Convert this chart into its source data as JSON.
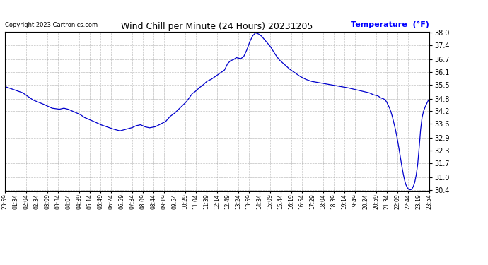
{
  "title": "Wind Chill per Minute (24 Hours) 20231205",
  "ylabel": "Temperature  (°F)",
  "copyright": "Copyright 2023 Cartronics.com",
  "line_color": "#0000cc",
  "background_color": "#ffffff",
  "grid_color": "#b0b0b0",
  "yticks": [
    30.4,
    31.0,
    31.7,
    32.3,
    32.9,
    33.6,
    34.2,
    34.8,
    35.5,
    36.1,
    36.7,
    37.4,
    38.0
  ],
  "xtick_labels": [
    "23:59",
    "01:34",
    "02:04",
    "02:34",
    "03:09",
    "03:34",
    "04:04",
    "04:39",
    "05:14",
    "05:49",
    "06:24",
    "06:59",
    "07:34",
    "08:09",
    "08:44",
    "09:19",
    "09:54",
    "10:29",
    "11:04",
    "11:39",
    "12:14",
    "12:49",
    "13:24",
    "13:59",
    "14:34",
    "15:09",
    "15:44",
    "16:19",
    "16:54",
    "17:29",
    "18:04",
    "18:39",
    "19:14",
    "19:49",
    "20:24",
    "20:59",
    "21:34",
    "22:09",
    "22:44",
    "23:19",
    "23:54"
  ],
  "keypoints": [
    [
      0,
      35.4
    ],
    [
      60,
      35.1
    ],
    [
      95,
      34.75
    ],
    [
      130,
      34.55
    ],
    [
      160,
      34.35
    ],
    [
      185,
      34.3
    ],
    [
      200,
      34.35
    ],
    [
      215,
      34.3
    ],
    [
      230,
      34.2
    ],
    [
      255,
      34.05
    ],
    [
      270,
      33.9
    ],
    [
      295,
      33.75
    ],
    [
      310,
      33.65
    ],
    [
      325,
      33.55
    ],
    [
      345,
      33.45
    ],
    [
      365,
      33.35
    ],
    [
      390,
      33.25
    ],
    [
      430,
      33.4
    ],
    [
      445,
      33.5
    ],
    [
      460,
      33.55
    ],
    [
      475,
      33.45
    ],
    [
      490,
      33.4
    ],
    [
      510,
      33.45
    ],
    [
      530,
      33.6
    ],
    [
      545,
      33.7
    ],
    [
      560,
      33.95
    ],
    [
      575,
      34.1
    ],
    [
      600,
      34.45
    ],
    [
      615,
      34.65
    ],
    [
      635,
      35.05
    ],
    [
      645,
      35.15
    ],
    [
      660,
      35.35
    ],
    [
      670,
      35.45
    ],
    [
      685,
      35.65
    ],
    [
      700,
      35.75
    ],
    [
      715,
      35.9
    ],
    [
      730,
      36.05
    ],
    [
      745,
      36.2
    ],
    [
      755,
      36.5
    ],
    [
      765,
      36.65
    ],
    [
      775,
      36.7
    ],
    [
      785,
      36.8
    ],
    [
      800,
      36.75
    ],
    [
      810,
      36.85
    ],
    [
      820,
      37.15
    ],
    [
      830,
      37.55
    ],
    [
      840,
      37.85
    ],
    [
      850,
      38.0
    ],
    [
      860,
      37.95
    ],
    [
      870,
      37.85
    ],
    [
      885,
      37.6
    ],
    [
      900,
      37.35
    ],
    [
      915,
      37.0
    ],
    [
      930,
      36.7
    ],
    [
      950,
      36.45
    ],
    [
      965,
      36.25
    ],
    [
      980,
      36.1
    ],
    [
      1000,
      35.9
    ],
    [
      1020,
      35.75
    ],
    [
      1040,
      35.65
    ],
    [
      1060,
      35.6
    ],
    [
      1080,
      35.55
    ],
    [
      1100,
      35.5
    ],
    [
      1120,
      35.45
    ],
    [
      1140,
      35.4
    ],
    [
      1160,
      35.35
    ],
    [
      1175,
      35.3
    ],
    [
      1190,
      35.25
    ],
    [
      1205,
      35.2
    ],
    [
      1220,
      35.15
    ],
    [
      1235,
      35.1
    ],
    [
      1250,
      35.0
    ],
    [
      1265,
      34.95
    ],
    [
      1275,
      34.85
    ],
    [
      1285,
      34.8
    ],
    [
      1290,
      34.75
    ],
    [
      1295,
      34.65
    ],
    [
      1300,
      34.5
    ],
    [
      1305,
      34.35
    ],
    [
      1310,
      34.15
    ],
    [
      1315,
      33.9
    ],
    [
      1320,
      33.6
    ],
    [
      1325,
      33.3
    ],
    [
      1330,
      32.95
    ],
    [
      1335,
      32.55
    ],
    [
      1340,
      32.1
    ],
    [
      1345,
      31.65
    ],
    [
      1350,
      31.25
    ],
    [
      1355,
      30.9
    ],
    [
      1360,
      30.65
    ],
    [
      1365,
      30.5
    ],
    [
      1370,
      30.42
    ],
    [
      1375,
      30.4
    ],
    [
      1380,
      30.42
    ],
    [
      1385,
      30.55
    ],
    [
      1390,
      30.75
    ],
    [
      1395,
      31.1
    ],
    [
      1400,
      31.6
    ],
    [
      1405,
      32.4
    ],
    [
      1410,
      33.3
    ],
    [
      1415,
      33.9
    ],
    [
      1420,
      34.2
    ],
    [
      1425,
      34.4
    ],
    [
      1430,
      34.55
    ],
    [
      1435,
      34.7
    ],
    [
      1440,
      34.82
    ]
  ]
}
